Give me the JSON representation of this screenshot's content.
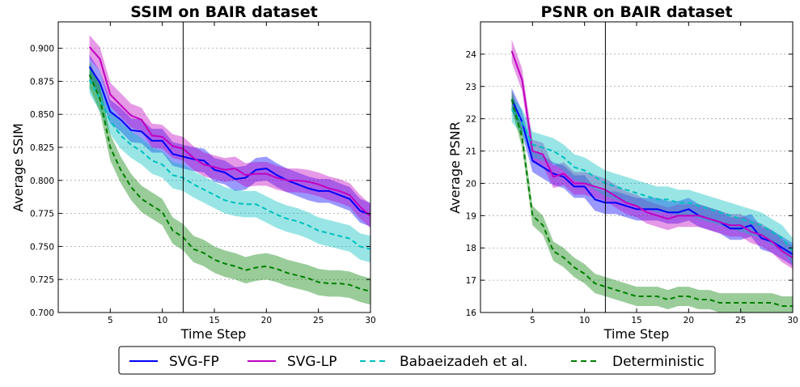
{
  "chart_data": [
    {
      "type": "line",
      "title": "SSIM on BAIR dataset",
      "xlabel": "Time Step",
      "ylabel": "Average SSIM",
      "xlim": [
        0,
        30
      ],
      "ylim": [
        0.7,
        0.92
      ],
      "xticks": [
        5,
        10,
        15,
        20,
        25,
        30
      ],
      "yticks": [
        0.7,
        0.725,
        0.75,
        0.775,
        0.8,
        0.825,
        0.85,
        0.875,
        0.9
      ],
      "ytick_labels": [
        "0.700",
        "0.725",
        "0.750",
        "0.775",
        "0.800",
        "0.825",
        "0.850",
        "0.875",
        "0.900"
      ],
      "vline_x": 12,
      "grid": "horizontal dotted",
      "x": [
        3,
        4,
        5,
        6,
        7,
        8,
        9,
        10,
        11,
        12,
        13,
        14,
        15,
        16,
        17,
        18,
        19,
        20,
        21,
        22,
        23,
        24,
        25,
        26,
        27,
        28,
        29,
        30
      ],
      "series": [
        {
          "name": "SVG-FP",
          "color": "#0000ff",
          "style": "solid",
          "band": 0.009,
          "values": [
            0.886,
            0.874,
            0.852,
            0.846,
            0.838,
            0.837,
            0.83,
            0.83,
            0.82,
            0.818,
            0.816,
            0.815,
            0.808,
            0.806,
            0.801,
            0.802,
            0.808,
            0.809,
            0.804,
            0.8,
            0.797,
            0.794,
            0.792,
            0.792,
            0.789,
            0.786,
            0.777,
            0.774
          ]
        },
        {
          "name": "SVG-LP",
          "color": "#c000c0",
          "style": "solid",
          "band": 0.009,
          "values": [
            0.901,
            0.892,
            0.865,
            0.857,
            0.849,
            0.846,
            0.834,
            0.833,
            0.826,
            0.824,
            0.817,
            0.812,
            0.81,
            0.808,
            0.809,
            0.804,
            0.805,
            0.805,
            0.802,
            0.8,
            0.8,
            0.799,
            0.797,
            0.794,
            0.792,
            0.789,
            0.78,
            0.773
          ]
        },
        {
          "name": "Babaeizadeh et al.",
          "color": "#00bfbf",
          "style": "dashed",
          "band": 0.01,
          "values": [
            0.876,
            0.862,
            0.845,
            0.834,
            0.827,
            0.822,
            0.815,
            0.812,
            0.804,
            0.802,
            0.797,
            0.793,
            0.789,
            0.785,
            0.783,
            0.782,
            0.782,
            0.778,
            0.774,
            0.771,
            0.769,
            0.766,
            0.762,
            0.76,
            0.758,
            0.756,
            0.75,
            0.748
          ]
        },
        {
          "name": "Deterministic",
          "color": "#007f00",
          "style": "dashed",
          "band": 0.01,
          "values": [
            0.88,
            0.862,
            0.825,
            0.808,
            0.795,
            0.786,
            0.781,
            0.776,
            0.762,
            0.757,
            0.748,
            0.745,
            0.74,
            0.737,
            0.735,
            0.732,
            0.734,
            0.735,
            0.733,
            0.73,
            0.728,
            0.726,
            0.723,
            0.722,
            0.722,
            0.721,
            0.718,
            0.716
          ]
        }
      ]
    },
    {
      "type": "line",
      "title": "PSNR on BAIR dataset",
      "xlabel": "Time Step",
      "ylabel": "Average PSNR",
      "xlim": [
        0,
        30
      ],
      "ylim": [
        16,
        25
      ],
      "xticks": [
        5,
        10,
        15,
        20,
        25,
        30
      ],
      "yticks": [
        16,
        17,
        18,
        19,
        20,
        21,
        22,
        23,
        24
      ],
      "ytick_labels": [
        "16",
        "17",
        "18",
        "19",
        "20",
        "21",
        "22",
        "23",
        "24"
      ],
      "vline_x": 12,
      "grid": "horizontal dotted",
      "x": [
        3,
        4,
        5,
        6,
        7,
        8,
        9,
        10,
        11,
        12,
        13,
        14,
        15,
        16,
        17,
        18,
        19,
        20,
        21,
        22,
        23,
        24,
        25,
        26,
        27,
        28,
        29,
        30
      ],
      "series": [
        {
          "name": "SVG-FP",
          "color": "#0000ff",
          "style": "solid",
          "band": 0.35,
          "values": [
            22.6,
            21.9,
            20.7,
            20.5,
            20.3,
            20.2,
            19.9,
            19.9,
            19.5,
            19.4,
            19.4,
            19.3,
            19.2,
            19.2,
            19.2,
            19.1,
            19.1,
            19.2,
            19.0,
            18.9,
            18.8,
            18.6,
            18.6,
            18.7,
            18.3,
            18.2,
            18.0,
            17.8
          ]
        },
        {
          "name": "SVG-LP",
          "color": "#c000c0",
          "style": "solid",
          "band": 0.35,
          "values": [
            24.1,
            23.2,
            21.0,
            20.9,
            20.2,
            20.3,
            20.0,
            20.0,
            19.9,
            19.8,
            19.6,
            19.4,
            19.3,
            19.1,
            19.0,
            18.9,
            19.0,
            19.0,
            19.0,
            18.9,
            18.8,
            18.7,
            18.7,
            18.5,
            18.4,
            18.2,
            17.9,
            17.7
          ]
        },
        {
          "name": "Babaeizadeh et al.",
          "color": "#00bfbf",
          "style": "dashed",
          "band": 0.4,
          "values": [
            22.3,
            21.9,
            21.2,
            21.1,
            21.0,
            20.8,
            20.5,
            20.4,
            20.2,
            20.0,
            19.9,
            19.8,
            19.7,
            19.6,
            19.5,
            19.5,
            19.4,
            19.4,
            19.3,
            19.2,
            19.1,
            19.0,
            18.9,
            18.8,
            18.7,
            18.5,
            18.3,
            17.9
          ]
        },
        {
          "name": "Deterministic",
          "color": "#007f00",
          "style": "dashed",
          "band": 0.3,
          "values": [
            22.6,
            21.4,
            19.0,
            18.7,
            17.9,
            17.7,
            17.4,
            17.2,
            16.9,
            16.8,
            16.7,
            16.6,
            16.5,
            16.5,
            16.5,
            16.4,
            16.5,
            16.5,
            16.4,
            16.4,
            16.3,
            16.3,
            16.3,
            16.3,
            16.3,
            16.3,
            16.2,
            16.2
          ]
        }
      ]
    }
  ],
  "legend": {
    "items": [
      {
        "label": "SVG-FP",
        "color": "#0000ff",
        "style": "solid"
      },
      {
        "label": "SVG-LP",
        "color": "#c000c0",
        "style": "solid"
      },
      {
        "label": "Babaeizadeh et al.",
        "color": "#00bfbf",
        "style": "dashed"
      },
      {
        "label": "Deterministic",
        "color": "#007f00",
        "style": "dashed"
      }
    ]
  }
}
